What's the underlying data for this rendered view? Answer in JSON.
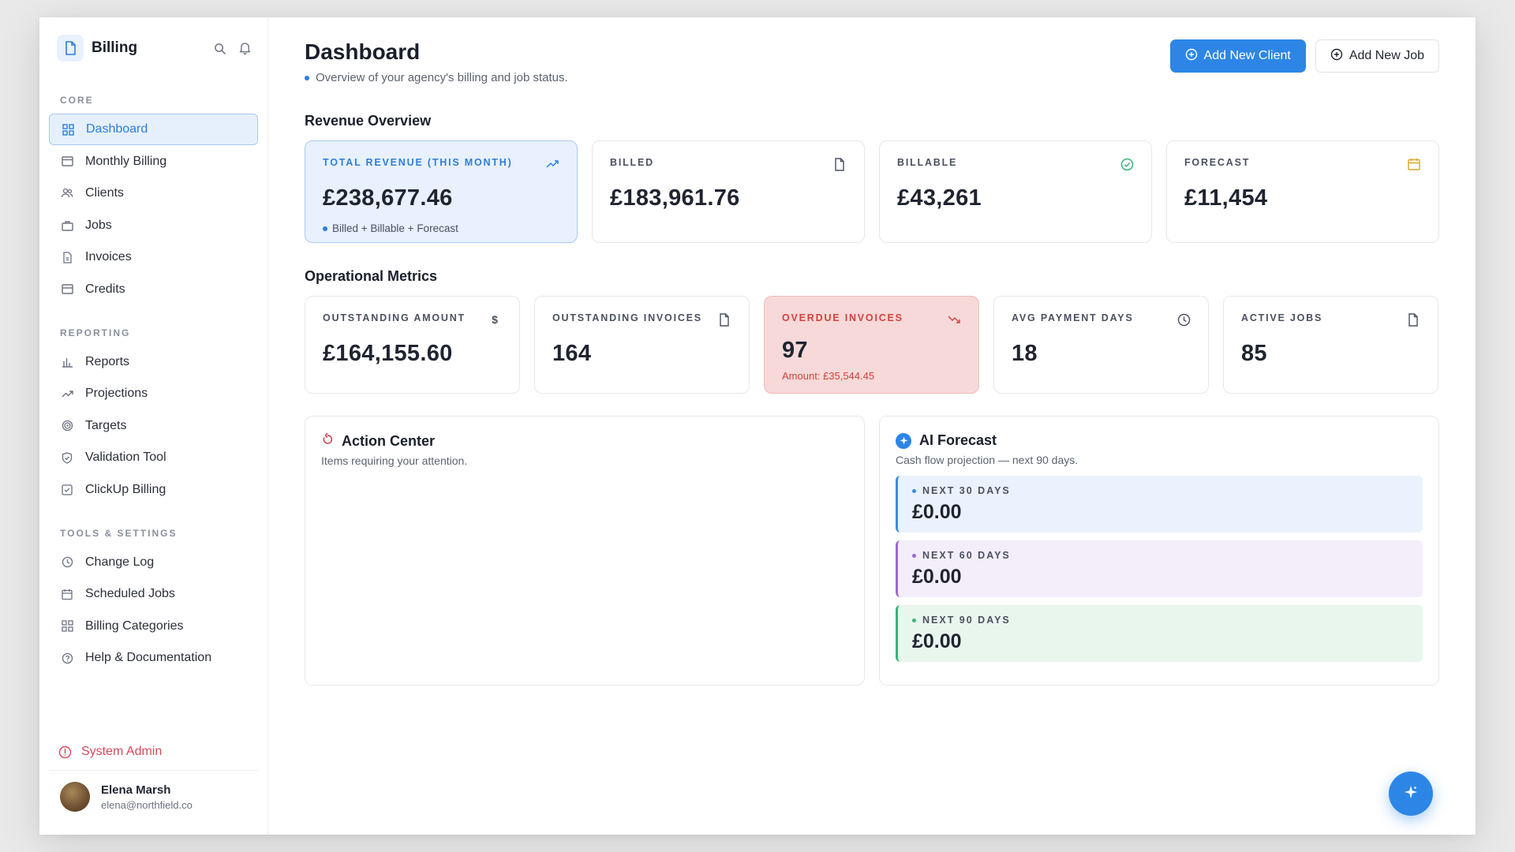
{
  "sidebar": {
    "brand": "Billing",
    "sections": {
      "core": "CORE",
      "reporting": "REPORTING",
      "tools": "TOOLS & SETTINGS"
    },
    "items": {
      "dashboard": "Dashboard",
      "monthly_billing": "Monthly Billing",
      "clients": "Clients",
      "jobs": "Jobs",
      "invoices": "Invoices",
      "credits": "Credits",
      "reports": "Reports",
      "projections": "Projections",
      "targets": "Targets",
      "validation_tool": "Validation Tool",
      "clickup_billing": "ClickUp Billing",
      "change_log": "Change Log",
      "scheduled_jobs": "Scheduled Jobs",
      "billing_categories": "Billing Categories",
      "help": "Help & Documentation"
    },
    "system_admin": "System Admin",
    "user": {
      "name": "Elena Marsh",
      "email": "elena@northfield.co"
    }
  },
  "header": {
    "title": "Dashboard",
    "subtitle": "Overview of your agency's billing and job status.",
    "add_client": "Add New Client",
    "add_job": "Add New Job"
  },
  "revenue": {
    "title": "Revenue Overview",
    "total": {
      "label": "TOTAL REVENUE (THIS MONTH)",
      "value": "£238,677.46",
      "note": "Billed + Billable + Forecast"
    },
    "billed": {
      "label": "BILLED",
      "value": "£183,961.76"
    },
    "billable": {
      "label": "BILLABLE",
      "value": "£43,261"
    },
    "forecast": {
      "label": "FORECAST",
      "value": "£11,454"
    }
  },
  "operational": {
    "title": "Operational Metrics",
    "outstanding_amount": {
      "label": "OUTSTANDING AMOUNT",
      "value": "£164,155.60"
    },
    "outstanding_invoices": {
      "label": "OUTSTANDING INVOICES",
      "value": "164"
    },
    "overdue_invoices": {
      "label": "OVERDUE INVOICES",
      "value": "97",
      "note": "Amount: £35,544.45"
    },
    "avg_payment_days": {
      "label": "AVG PAYMENT DAYS",
      "value": "18"
    },
    "active_jobs": {
      "label": "ACTIVE JOBS",
      "value": "85"
    }
  },
  "action_center": {
    "title": "Action Center",
    "subtitle": "Items requiring your attention."
  },
  "ai_forecast": {
    "title": "AI Forecast",
    "subtitle": "Cash flow projection — next 90 days.",
    "items": [
      {
        "label": "NEXT 30 DAYS",
        "value": "£0.00"
      },
      {
        "label": "NEXT 60 DAYS",
        "value": "£0.00"
      },
      {
        "label": "NEXT 90 DAYS",
        "value": "£0.00"
      }
    ]
  },
  "colors": {
    "accent": "#2d86e6",
    "danger": "#d0423f",
    "purple": "#9b6ad0",
    "green": "#38b37a"
  }
}
